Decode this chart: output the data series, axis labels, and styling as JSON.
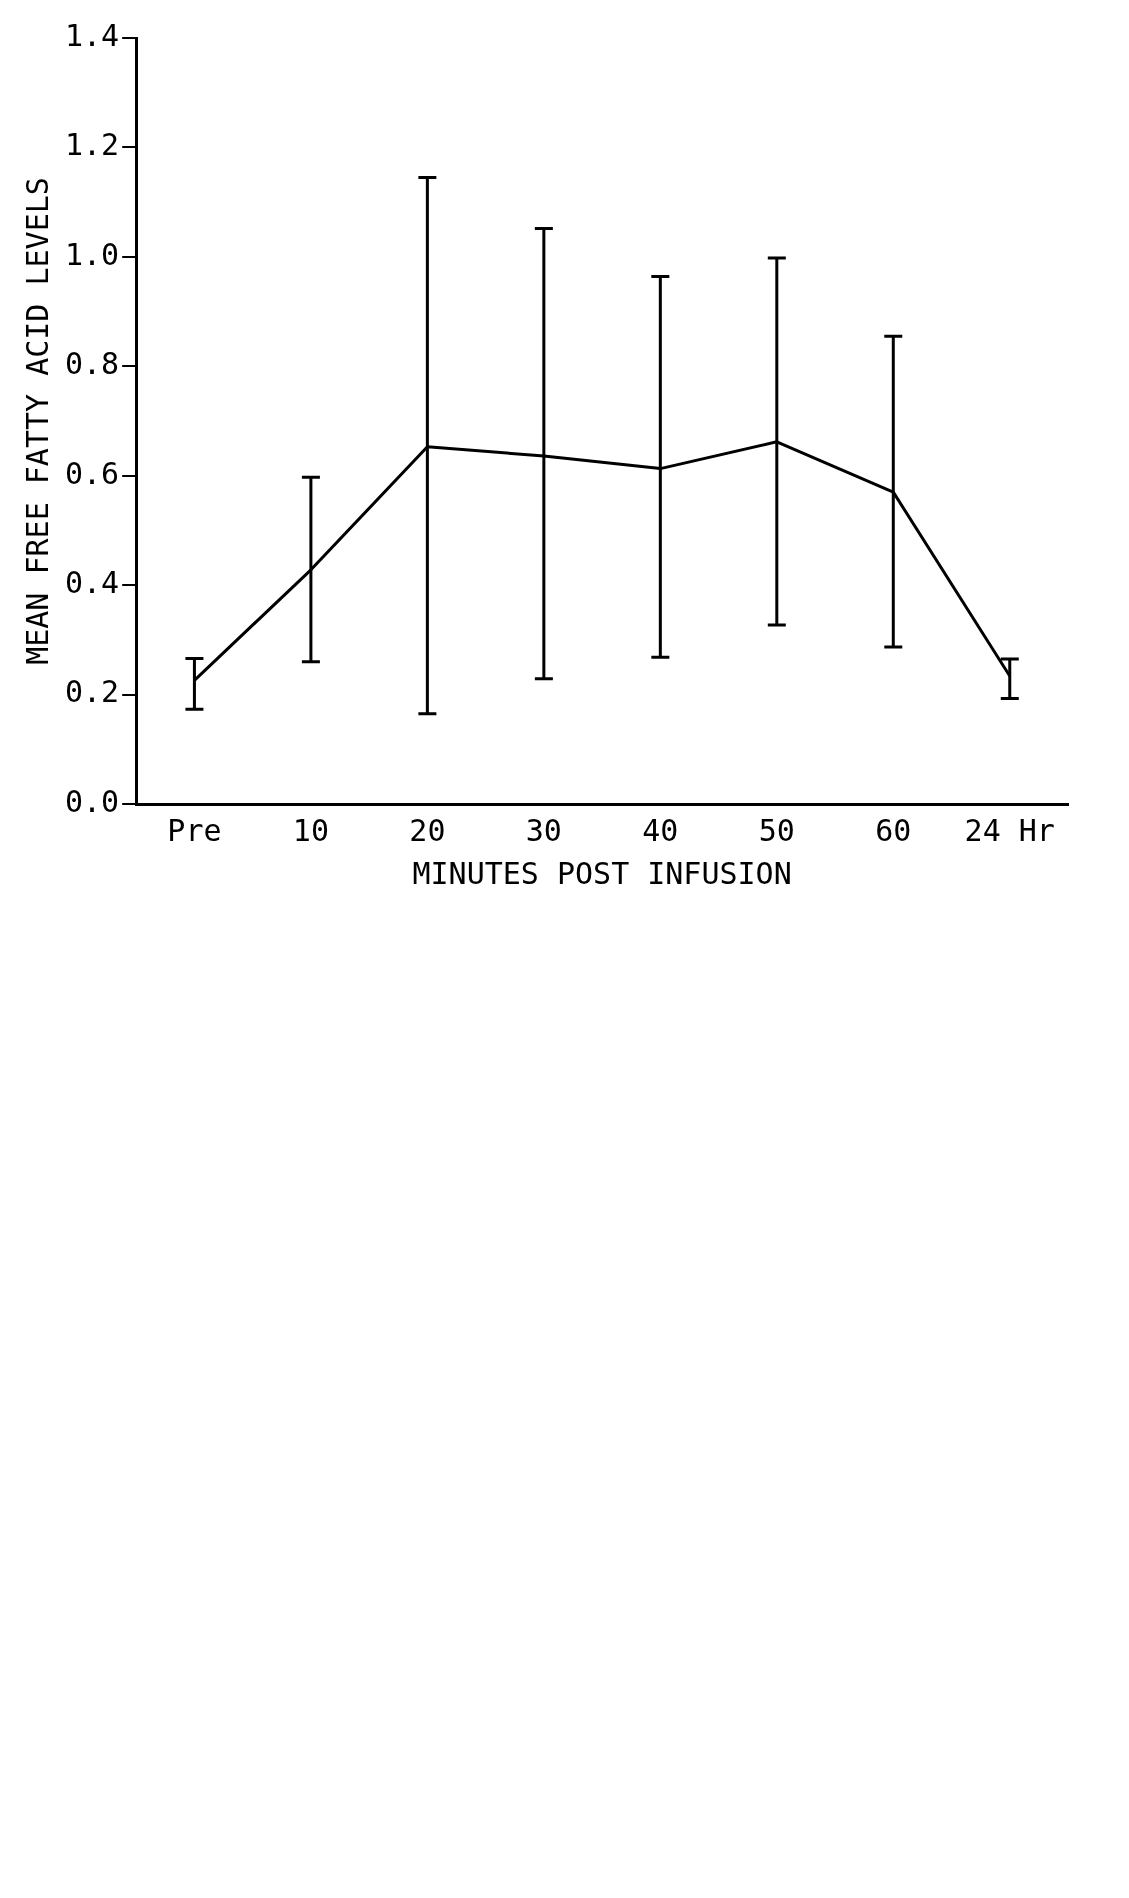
{
  "chart_data": {
    "type": "line",
    "xlabel": "MINUTES POST INFUSION",
    "ylabel": "MEAN FREE FATTY ACID LEVELS",
    "categories": [
      "Pre",
      "10",
      "20",
      "30",
      "40",
      "50",
      "60",
      "24 Hr"
    ],
    "series": [
      {
        "color": "#000000",
        "values": [
          0.226,
          0.428,
          0.653,
          0.636,
          0.613,
          0.662,
          0.57,
          0.234
        ],
        "errors": [
          [
            0.173,
            0.266
          ],
          [
            0.26,
            0.597
          ],
          [
            0.165,
            1.145
          ],
          [
            0.229,
            1.052
          ],
          [
            0.268,
            0.964
          ],
          [
            0.327,
            0.998
          ],
          [
            0.287,
            0.855
          ],
          [
            0.193,
            0.265
          ]
        ]
      }
    ],
    "ylim": [
      0,
      1.4
    ],
    "yticks": [
      {
        "value": 0,
        "label": "0.0"
      },
      0.2,
      0.4,
      0.6,
      0.8,
      {
        "value": 1,
        "label": "1.0"
      },
      1.2,
      1.4
    ],
    "grid": false,
    "legend": false,
    "marker": "none",
    "line_style": "solid"
  }
}
